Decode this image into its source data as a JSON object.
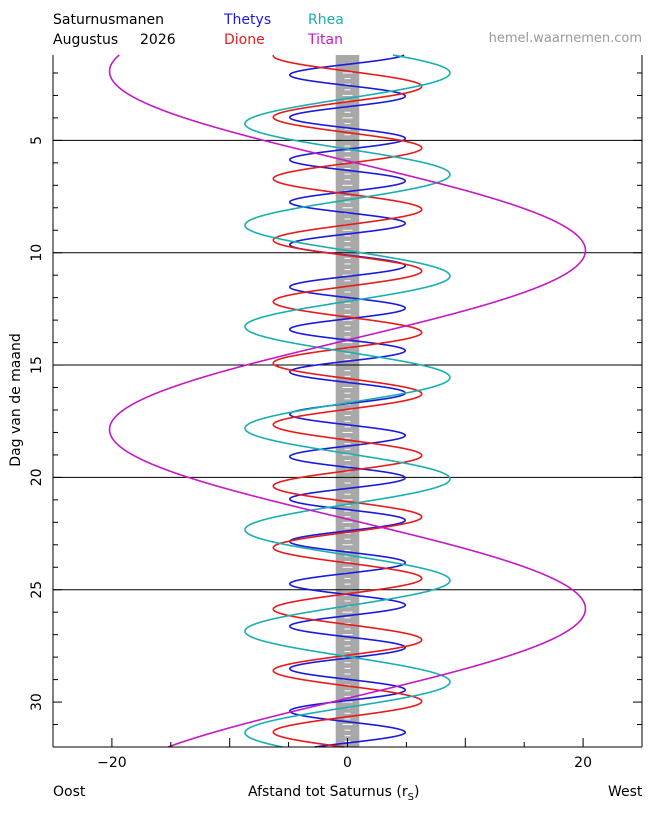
{
  "header": {
    "title": "Saturnusmanen",
    "month": "Augustus",
    "year": "2026",
    "site": "hemel.waarnemen.com"
  },
  "legend": [
    {
      "name": "Thetys",
      "color": "#1a1adf"
    },
    {
      "name": "Rhea",
      "color": "#1aafaf"
    },
    {
      "name": "Dione",
      "color": "#e81a1a"
    },
    {
      "name": "Titan",
      "color": "#c41ac4"
    }
  ],
  "footer": {
    "left": "Oost",
    "xlabel_main": "Afstand tot Saturnus (r",
    "xlabel_sub": "S",
    "xlabel_end": ")",
    "right": "West"
  },
  "chart_data": {
    "type": "line",
    "title": "Saturnusmanen",
    "xlabel": "Afstand tot Saturnus (rS)",
    "ylabel": "Dag van de maand",
    "xlim": [
      -25,
      25
    ],
    "ylim": [
      1.2,
      32
    ],
    "y_reversed": true,
    "x_ticks": [
      -20,
      0,
      20
    ],
    "x_tick_labels": [
      "−20",
      "0",
      "20"
    ],
    "y_ticks": [
      5,
      10,
      15,
      20,
      25,
      30
    ],
    "y_tick_labels": [
      "5",
      "10",
      "15",
      "20",
      "25",
      "30"
    ],
    "day_lines": [
      5,
      10,
      15,
      20,
      25
    ],
    "saturn_halfwidth": 1.0,
    "series": [
      {
        "name": "Thetys",
        "color": "#1a1adf",
        "amplitude": 4.9,
        "period_days": 1.8878,
        "west_max_day": 3.03
      },
      {
        "name": "Dione",
        "color": "#e81a1a",
        "amplitude": 6.3,
        "period_days": 2.7369,
        "west_max_day": 2.6
      },
      {
        "name": "Rhea",
        "color": "#1aafaf",
        "amplitude": 8.7,
        "period_days": 4.5175,
        "west_max_day": 2.0
      },
      {
        "name": "Titan",
        "color": "#c41ac4",
        "amplitude": 20.2,
        "period_days": 15.945,
        "west_max_day": 9.9
      }
    ]
  }
}
